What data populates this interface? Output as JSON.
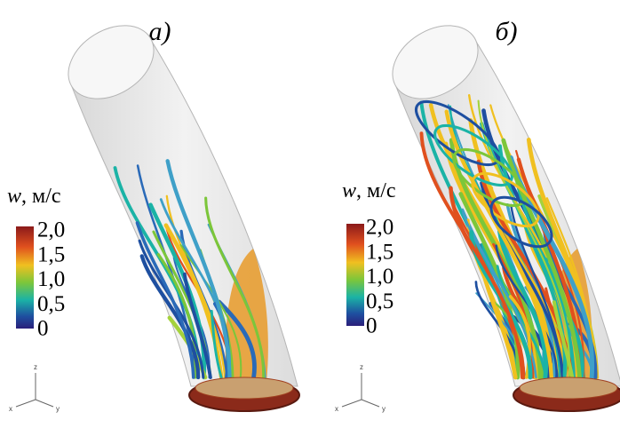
{
  "panels": [
    {
      "label": "а)",
      "colorbar": {
        "variable": "w",
        "unit": ", м/с",
        "ticks": [
          "2,0",
          "1,5",
          "1,0",
          "0,5",
          "0"
        ]
      },
      "axes": [
        "z",
        "x",
        "y"
      ]
    },
    {
      "label": "б)",
      "colorbar": {
        "variable": "w",
        "unit": ", м/с",
        "ticks": [
          "2,0",
          "1,5",
          "1,0",
          "0,5",
          "0"
        ]
      },
      "axes": [
        "z",
        "x",
        "y"
      ]
    }
  ]
}
